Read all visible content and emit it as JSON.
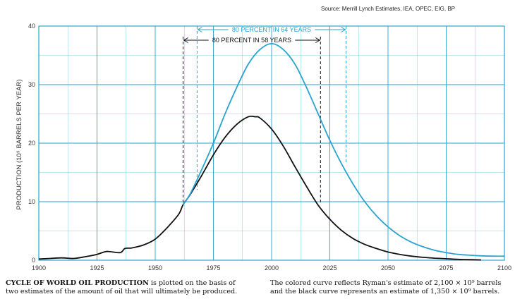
{
  "source": "Source: Merrill Lynch Estimates, IEA, OPEC, EIG, BP",
  "caption": {
    "left_bold": "CYCLE OF WORLD OIL PRODUCTION",
    "left_line1_rest": " is plotted on the basis of",
    "left_line2": "two estimates of the amount of oil that will ultimately be produced.",
    "right_line1": "The colored curve reflects Ryman's estimate of 2,100 × 10⁹ barrels",
    "right_line2": "and the black curve represents an estimate of 1,350 × 10⁹ barrels."
  },
  "colors": {
    "grid": "#2aa3cf",
    "blue_curve": "#2aa3cf",
    "black_curve": "#111111",
    "axis": "#2aa3cf"
  },
  "chart_data": {
    "type": "line",
    "ylabel": "PRODUCTION (10⁹ BARRELS PER YEAR)",
    "xlim": [
      1900,
      2100
    ],
    "ylim": [
      0,
      40
    ],
    "x_ticks": [
      1900,
      1925,
      1950,
      1975,
      2000,
      2025,
      2050,
      2075,
      2100
    ],
    "y_ticks": [
      0,
      10,
      20,
      30,
      40
    ],
    "grid": true,
    "annotations": [
      {
        "text": "80 PERCENT IN 64 YEARS",
        "x_start": 1968,
        "x_end": 2032,
        "color": "blue"
      },
      {
        "text": "80 PERCENT IN 58 YEARS",
        "x_start": 1962,
        "x_end": 2021,
        "color": "black"
      }
    ],
    "series": [
      {
        "color": "black",
        "x": [
          1900,
          1905,
          1910,
          1915,
          1920,
          1925,
          1928,
          1930,
          1935,
          1937,
          1940,
          1945,
          1950,
          1955,
          1960,
          1962,
          1965,
          1970,
          1975,
          1980,
          1985,
          1990,
          1993,
          1995,
          2000,
          2005,
          2010,
          2015,
          2020,
          2025,
          2030,
          2035,
          2040,
          2045,
          2050,
          2055,
          2060,
          2065,
          2070,
          2075,
          2080,
          2085,
          2090
        ],
        "values": [
          0.2,
          0.3,
          0.4,
          0.3,
          0.6,
          1.0,
          1.4,
          1.5,
          1.3,
          2.0,
          2.1,
          2.6,
          3.6,
          5.5,
          7.8,
          9.5,
          11.2,
          14.5,
          18.0,
          21.0,
          23.2,
          24.5,
          24.5,
          24.3,
          22.4,
          19.5,
          16.0,
          12.6,
          9.4,
          7.0,
          5.1,
          3.7,
          2.7,
          2.0,
          1.4,
          1.0,
          0.7,
          0.5,
          0.35,
          0.25,
          0.15,
          0.1,
          0.05
        ]
      },
      {
        "color": "blue",
        "x": [
          1962,
          1965,
          1970,
          1975,
          1980,
          1985,
          1990,
          1995,
          2000,
          2005,
          2010,
          2015,
          2020,
          2025,
          2030,
          2035,
          2040,
          2045,
          2050,
          2055,
          2060,
          2065,
          2070,
          2075,
          2080,
          2085,
          2090,
          2095,
          2100
        ],
        "values": [
          9.5,
          11.3,
          15.5,
          20.0,
          25.0,
          29.5,
          33.5,
          36.0,
          37.0,
          36.0,
          33.5,
          29.5,
          25.0,
          20.5,
          16.5,
          13.0,
          10.0,
          7.6,
          5.7,
          4.2,
          3.1,
          2.3,
          1.7,
          1.3,
          1.0,
          0.85,
          0.75,
          0.7,
          0.7
        ]
      }
    ]
  }
}
